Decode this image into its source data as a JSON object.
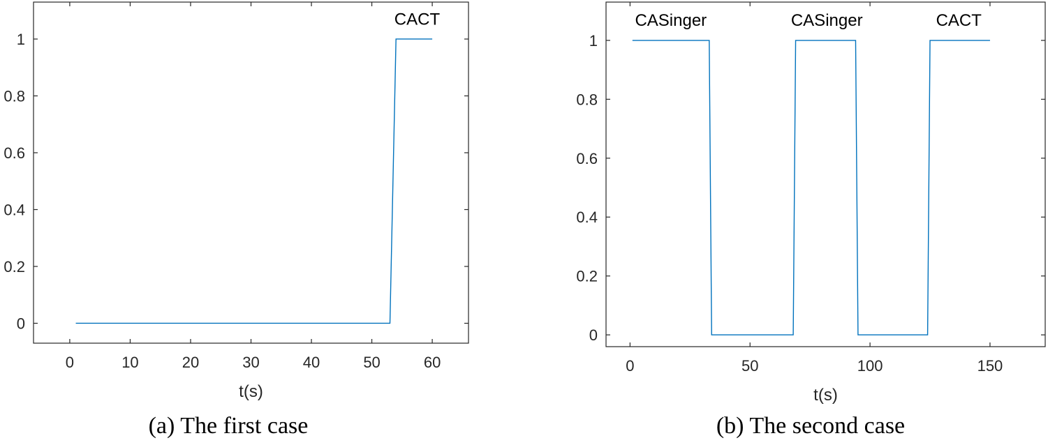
{
  "chart_data": [
    {
      "type": "line",
      "caption": "(a) The first case",
      "xlabel": "t(s)",
      "ylabel": "",
      "xlim": [
        -6,
        66
      ],
      "ylim": [
        -0.07,
        1.13
      ],
      "xticks": [
        0,
        10,
        20,
        30,
        40,
        50,
        60
      ],
      "yticks": [
        0,
        0.2,
        0.4,
        0.6,
        0.8,
        1
      ],
      "grid": false,
      "color": "#0072BD",
      "series": [
        {
          "x": [
            1,
            53,
            54,
            60
          ],
          "y": [
            0,
            0,
            1,
            1
          ]
        }
      ],
      "annotations": [
        {
          "text": "CACT",
          "x": 57.5,
          "y": 1.05
        }
      ]
    },
    {
      "type": "line",
      "caption": "(b) The second case",
      "xlabel": "t(s)",
      "ylabel": "",
      "xlim": [
        -10,
        173
      ],
      "ylim": [
        -0.04,
        1.13
      ],
      "xticks": [
        0,
        50,
        100,
        150
      ],
      "yticks": [
        0,
        0.2,
        0.4,
        0.6,
        0.8,
        1
      ],
      "grid": false,
      "color": "#0072BD",
      "series": [
        {
          "x": [
            1,
            33,
            34,
            68,
            69,
            94,
            95,
            124,
            125,
            150
          ],
          "y": [
            1,
            1,
            0,
            0,
            1,
            1,
            0,
            0,
            1,
            1
          ]
        }
      ],
      "annotations": [
        {
          "text": "CASinger",
          "x": 17,
          "y": 1.05
        },
        {
          "text": "CASinger",
          "x": 82,
          "y": 1.05
        },
        {
          "text": "CACT",
          "x": 137,
          "y": 1.05
        }
      ]
    }
  ]
}
